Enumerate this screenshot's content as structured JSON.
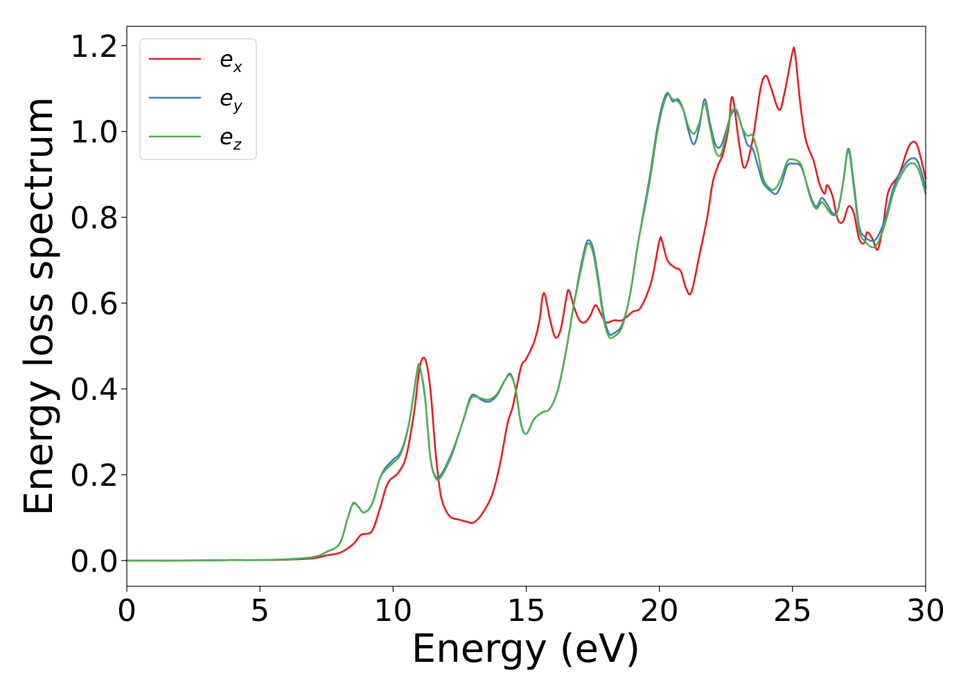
{
  "chart_data": {
    "type": "line",
    "xlabel": "Energy (eV)",
    "ylabel": "Energy loss spectrum",
    "xlim": [
      0,
      30
    ],
    "ylim": [
      -0.06,
      1.245
    ],
    "grid": false,
    "legend_position": "upper-left",
    "x_ticks": [
      "0",
      "5",
      "10",
      "15",
      "20",
      "25",
      "30"
    ],
    "y_ticks": [
      "0.0",
      "0.2",
      "0.4",
      "0.6",
      "0.8",
      "1.0",
      "1.2"
    ],
    "x_tick_values": [
      0,
      5,
      10,
      15,
      20,
      25,
      30
    ],
    "y_tick_values": [
      0.0,
      0.2,
      0.4,
      0.6,
      0.8,
      1.0,
      1.2
    ],
    "series": [
      {
        "name": "e",
        "subscript": "x",
        "color": "#e41a1c",
        "points": [
          [
            0,
            0.0
          ],
          [
            2,
            0.0
          ],
          [
            4,
            0.001
          ],
          [
            5,
            0.001
          ],
          [
            6,
            0.002
          ],
          [
            7,
            0.005
          ],
          [
            7.5,
            0.012
          ],
          [
            8,
            0.018
          ],
          [
            8.5,
            0.038
          ],
          [
            8.8,
            0.06
          ],
          [
            9.2,
            0.068
          ],
          [
            9.5,
            0.12
          ],
          [
            9.8,
            0.18
          ],
          [
            10.2,
            0.205
          ],
          [
            10.5,
            0.245
          ],
          [
            10.8,
            0.35
          ],
          [
            11.0,
            0.45
          ],
          [
            11.2,
            0.47
          ],
          [
            11.4,
            0.4
          ],
          [
            11.6,
            0.25
          ],
          [
            11.8,
            0.15
          ],
          [
            12.1,
            0.105
          ],
          [
            12.5,
            0.095
          ],
          [
            12.8,
            0.09
          ],
          [
            13.0,
            0.088
          ],
          [
            13.3,
            0.105
          ],
          [
            13.7,
            0.15
          ],
          [
            14.0,
            0.22
          ],
          [
            14.3,
            0.32
          ],
          [
            14.5,
            0.36
          ],
          [
            14.8,
            0.45
          ],
          [
            15.0,
            0.47
          ],
          [
            15.3,
            0.51
          ],
          [
            15.5,
            0.56
          ],
          [
            15.6,
            0.61
          ],
          [
            15.7,
            0.62
          ],
          [
            15.9,
            0.56
          ],
          [
            16.1,
            0.52
          ],
          [
            16.3,
            0.54
          ],
          [
            16.5,
            0.61
          ],
          [
            16.6,
            0.63
          ],
          [
            16.8,
            0.59
          ],
          [
            17.0,
            0.56
          ],
          [
            17.2,
            0.555
          ],
          [
            17.4,
            0.57
          ],
          [
            17.6,
            0.595
          ],
          [
            17.8,
            0.575
          ],
          [
            18.0,
            0.555
          ],
          [
            18.3,
            0.56
          ],
          [
            18.6,
            0.56
          ],
          [
            19.0,
            0.58
          ],
          [
            19.3,
            0.59
          ],
          [
            19.7,
            0.65
          ],
          [
            20.0,
            0.745
          ],
          [
            20.1,
            0.745
          ],
          [
            20.3,
            0.7
          ],
          [
            20.6,
            0.682
          ],
          [
            20.8,
            0.675
          ],
          [
            21.0,
            0.635
          ],
          [
            21.2,
            0.625
          ],
          [
            21.5,
            0.71
          ],
          [
            21.8,
            0.8
          ],
          [
            22.0,
            0.88
          ],
          [
            22.2,
            0.92
          ],
          [
            22.4,
            0.95
          ],
          [
            22.6,
            1.01
          ],
          [
            22.7,
            1.075
          ],
          [
            22.8,
            1.065
          ],
          [
            23.0,
            0.97
          ],
          [
            23.2,
            0.915
          ],
          [
            23.5,
            0.98
          ],
          [
            23.8,
            1.1
          ],
          [
            24.0,
            1.13
          ],
          [
            24.2,
            1.1
          ],
          [
            24.5,
            1.05
          ],
          [
            24.7,
            1.09
          ],
          [
            25.0,
            1.185
          ],
          [
            25.1,
            1.18
          ],
          [
            25.3,
            1.06
          ],
          [
            25.5,
            0.98
          ],
          [
            25.8,
            0.93
          ],
          [
            26.0,
            0.88
          ],
          [
            26.2,
            0.855
          ],
          [
            26.3,
            0.875
          ],
          [
            26.5,
            0.85
          ],
          [
            26.7,
            0.795
          ],
          [
            26.9,
            0.79
          ],
          [
            27.1,
            0.825
          ],
          [
            27.3,
            0.81
          ],
          [
            27.5,
            0.75
          ],
          [
            27.7,
            0.74
          ],
          [
            27.8,
            0.765
          ],
          [
            28.0,
            0.75
          ],
          [
            28.2,
            0.725
          ],
          [
            28.4,
            0.78
          ],
          [
            28.6,
            0.86
          ],
          [
            29.0,
            0.9
          ],
          [
            29.3,
            0.955
          ],
          [
            29.5,
            0.975
          ],
          [
            29.7,
            0.965
          ],
          [
            30.0,
            0.89
          ]
        ]
      },
      {
        "name": "e",
        "subscript": "y",
        "color": "#377eb8",
        "points": [
          [
            0,
            0.0
          ],
          [
            2,
            0.0
          ],
          [
            4,
            0.001
          ],
          [
            5,
            0.001
          ],
          [
            6,
            0.003
          ],
          [
            7,
            0.008
          ],
          [
            7.5,
            0.02
          ],
          [
            8,
            0.04
          ],
          [
            8.3,
            0.1
          ],
          [
            8.5,
            0.132
          ],
          [
            8.7,
            0.125
          ],
          [
            8.9,
            0.112
          ],
          [
            9.2,
            0.13
          ],
          [
            9.5,
            0.19
          ],
          [
            9.7,
            0.215
          ],
          [
            10.0,
            0.235
          ],
          [
            10.3,
            0.255
          ],
          [
            10.6,
            0.32
          ],
          [
            10.9,
            0.44
          ],
          [
            11.0,
            0.45
          ],
          [
            11.2,
            0.38
          ],
          [
            11.4,
            0.24
          ],
          [
            11.6,
            0.195
          ],
          [
            11.8,
            0.2
          ],
          [
            12.2,
            0.25
          ],
          [
            12.6,
            0.32
          ],
          [
            12.9,
            0.38
          ],
          [
            13.1,
            0.385
          ],
          [
            13.3,
            0.375
          ],
          [
            13.6,
            0.37
          ],
          [
            13.9,
            0.385
          ],
          [
            14.2,
            0.42
          ],
          [
            14.4,
            0.435
          ],
          [
            14.6,
            0.4
          ],
          [
            14.8,
            0.32
          ],
          [
            15.0,
            0.295
          ],
          [
            15.3,
            0.33
          ],
          [
            15.6,
            0.345
          ],
          [
            15.9,
            0.355
          ],
          [
            16.2,
            0.4
          ],
          [
            16.5,
            0.49
          ],
          [
            16.8,
            0.6
          ],
          [
            17.1,
            0.7
          ],
          [
            17.3,
            0.745
          ],
          [
            17.5,
            0.73
          ],
          [
            17.7,
            0.66
          ],
          [
            17.9,
            0.575
          ],
          [
            18.1,
            0.53
          ],
          [
            18.3,
            0.53
          ],
          [
            18.6,
            0.55
          ],
          [
            18.9,
            0.62
          ],
          [
            19.2,
            0.74
          ],
          [
            19.6,
            0.88
          ],
          [
            19.9,
            1.0
          ],
          [
            20.1,
            1.06
          ],
          [
            20.3,
            1.09
          ],
          [
            20.5,
            1.07
          ],
          [
            20.7,
            1.075
          ],
          [
            20.9,
            1.05
          ],
          [
            21.1,
            1.0
          ],
          [
            21.3,
            0.97
          ],
          [
            21.5,
            1.01
          ],
          [
            21.7,
            1.075
          ],
          [
            21.9,
            1.02
          ],
          [
            22.1,
            0.97
          ],
          [
            22.3,
            0.965
          ],
          [
            22.5,
            1.0
          ],
          [
            22.7,
            1.04
          ],
          [
            22.9,
            1.045
          ],
          [
            23.1,
            1.01
          ],
          [
            23.3,
            0.97
          ],
          [
            23.5,
            0.96
          ],
          [
            23.7,
            0.92
          ],
          [
            23.9,
            0.88
          ],
          [
            24.2,
            0.86
          ],
          [
            24.4,
            0.855
          ],
          [
            24.6,
            0.88
          ],
          [
            24.8,
            0.92
          ],
          [
            25.0,
            0.925
          ],
          [
            25.3,
            0.92
          ],
          [
            25.5,
            0.885
          ],
          [
            25.7,
            0.845
          ],
          [
            25.9,
            0.825
          ],
          [
            26.1,
            0.845
          ],
          [
            26.3,
            0.83
          ],
          [
            26.5,
            0.81
          ],
          [
            26.7,
            0.815
          ],
          [
            26.9,
            0.88
          ],
          [
            27.1,
            0.96
          ],
          [
            27.3,
            0.88
          ],
          [
            27.5,
            0.78
          ],
          [
            27.7,
            0.755
          ],
          [
            28.0,
            0.745
          ],
          [
            28.2,
            0.755
          ],
          [
            28.5,
            0.8
          ],
          [
            28.8,
            0.87
          ],
          [
            29.1,
            0.91
          ],
          [
            29.4,
            0.935
          ],
          [
            29.7,
            0.93
          ],
          [
            30.0,
            0.87
          ]
        ]
      },
      {
        "name": "e",
        "subscript": "z",
        "color": "#4daf4a",
        "points": [
          [
            0,
            0.0
          ],
          [
            2,
            0.0
          ],
          [
            4,
            0.001
          ],
          [
            5,
            0.001
          ],
          [
            6,
            0.003
          ],
          [
            7,
            0.008
          ],
          [
            7.5,
            0.02
          ],
          [
            8,
            0.04
          ],
          [
            8.3,
            0.1
          ],
          [
            8.5,
            0.134
          ],
          [
            8.7,
            0.125
          ],
          [
            8.9,
            0.112
          ],
          [
            9.2,
            0.13
          ],
          [
            9.5,
            0.19
          ],
          [
            9.7,
            0.21
          ],
          [
            10.0,
            0.228
          ],
          [
            10.3,
            0.25
          ],
          [
            10.6,
            0.32
          ],
          [
            10.9,
            0.44
          ],
          [
            11.0,
            0.452
          ],
          [
            11.2,
            0.38
          ],
          [
            11.4,
            0.24
          ],
          [
            11.6,
            0.192
          ],
          [
            11.8,
            0.195
          ],
          [
            12.2,
            0.245
          ],
          [
            12.6,
            0.32
          ],
          [
            12.9,
            0.375
          ],
          [
            13.1,
            0.382
          ],
          [
            13.3,
            0.378
          ],
          [
            13.6,
            0.375
          ],
          [
            13.9,
            0.388
          ],
          [
            14.2,
            0.42
          ],
          [
            14.4,
            0.432
          ],
          [
            14.6,
            0.4
          ],
          [
            14.8,
            0.32
          ],
          [
            15.0,
            0.295
          ],
          [
            15.3,
            0.33
          ],
          [
            15.6,
            0.345
          ],
          [
            15.9,
            0.355
          ],
          [
            16.2,
            0.4
          ],
          [
            16.5,
            0.49
          ],
          [
            16.8,
            0.6
          ],
          [
            17.1,
            0.69
          ],
          [
            17.3,
            0.738
          ],
          [
            17.5,
            0.72
          ],
          [
            17.7,
            0.65
          ],
          [
            17.9,
            0.565
          ],
          [
            18.1,
            0.522
          ],
          [
            18.3,
            0.522
          ],
          [
            18.6,
            0.545
          ],
          [
            18.9,
            0.62
          ],
          [
            19.2,
            0.74
          ],
          [
            19.6,
            0.87
          ],
          [
            19.9,
            0.99
          ],
          [
            20.1,
            1.05
          ],
          [
            20.3,
            1.085
          ],
          [
            20.5,
            1.075
          ],
          [
            20.7,
            1.07
          ],
          [
            20.9,
            1.05
          ],
          [
            21.1,
            1.01
          ],
          [
            21.3,
            0.995
          ],
          [
            21.5,
            1.02
          ],
          [
            21.7,
            1.065
          ],
          [
            21.9,
            1.01
          ],
          [
            22.1,
            0.955
          ],
          [
            22.3,
            0.945
          ],
          [
            22.5,
            0.99
          ],
          [
            22.7,
            1.045
          ],
          [
            22.9,
            1.05
          ],
          [
            23.1,
            1.01
          ],
          [
            23.3,
            0.99
          ],
          [
            23.5,
            0.99
          ],
          [
            23.7,
            0.95
          ],
          [
            23.9,
            0.89
          ],
          [
            24.2,
            0.865
          ],
          [
            24.4,
            0.87
          ],
          [
            24.6,
            0.895
          ],
          [
            24.8,
            0.93
          ],
          [
            25.0,
            0.935
          ],
          [
            25.3,
            0.925
          ],
          [
            25.5,
            0.885
          ],
          [
            25.7,
            0.84
          ],
          [
            25.9,
            0.82
          ],
          [
            26.1,
            0.835
          ],
          [
            26.3,
            0.82
          ],
          [
            26.5,
            0.805
          ],
          [
            26.7,
            0.815
          ],
          [
            26.9,
            0.88
          ],
          [
            27.1,
            0.955
          ],
          [
            27.3,
            0.87
          ],
          [
            27.5,
            0.77
          ],
          [
            27.7,
            0.745
          ],
          [
            28.0,
            0.73
          ],
          [
            28.2,
            0.74
          ],
          [
            28.5,
            0.79
          ],
          [
            28.8,
            0.86
          ],
          [
            29.1,
            0.9
          ],
          [
            29.4,
            0.925
          ],
          [
            29.7,
            0.915
          ],
          [
            30.0,
            0.855
          ]
        ]
      }
    ]
  }
}
